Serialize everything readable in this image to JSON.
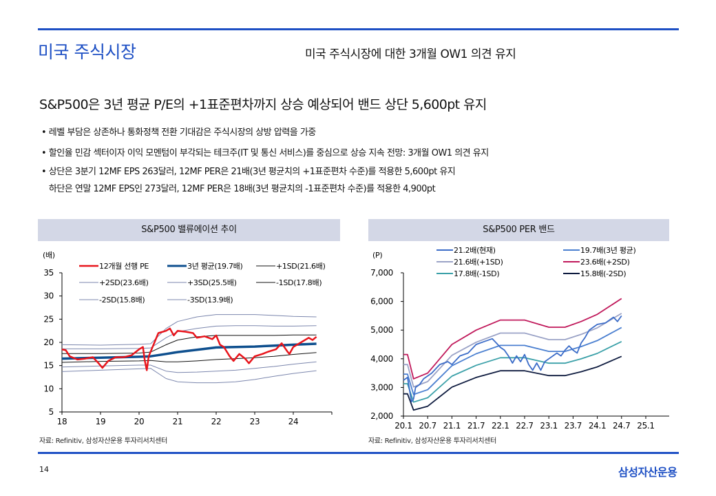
{
  "header": {
    "title": "미국 주식시장",
    "subtitle": "미국 주식시장에 대한 3개월 OW1 의견 유지"
  },
  "headline": "S&P500은 3년 평균 P/E의 +1표준편차까지 상승 예상되어 밴드 상단 5,600pt 유지",
  "bullets": [
    "• 레벨 부담은 상존하나 통화정책 전환 기대감은 주식시장의 상방 압력을 가중",
    "• 할인율 민감 섹터이자 이익 모멘텀이 부각되는 테크주(IT 및 통신 서비스)를 중심으로 상승 지속 전망: 3개월 OW1 의견 유지",
    "• 상단은 3분기 12MF EPS 263달러, 12MF PER은 21배(3년 평균치의 +1표준편차 수준)를 적용한 5,600pt 유지",
    "   하단은 연말 12MF EPS인 273달러, 12MF PER은 18배(3년 평균치의 -1표준편차 수준)를 적용한 4,900pt"
  ],
  "footer": {
    "page": "14",
    "logo": "삼성자산운용"
  },
  "colors": {
    "accent": "#1d4fc4",
    "pe": "#e8141b",
    "avg": "#0e4f8e"
  },
  "chart_data": [
    {
      "type": "line",
      "title": "S&P500 밸류에이션 추이",
      "unit": "(배)",
      "source": "자료: Refinitiv, 삼성자산운용 투자리서치센터",
      "ylim": [
        5,
        35
      ],
      "yticks": [
        "5",
        "10",
        "15",
        "20",
        "25",
        "30",
        "35"
      ],
      "xlim": [
        2018,
        2025
      ],
      "xticks": [
        {
          "v": 2018,
          "label": "18"
        },
        {
          "v": 2019,
          "label": "19"
        },
        {
          "v": 2020,
          "label": "20"
        },
        {
          "v": 2021,
          "label": "21"
        },
        {
          "v": 2022,
          "label": "22"
        },
        {
          "v": 2023,
          "label": "23"
        },
        {
          "v": 2024,
          "label": "24"
        }
      ],
      "band_x": [
        2018,
        2019,
        2020,
        2020.3,
        2020.7,
        2021,
        2021.5,
        2022,
        2022.5,
        2023,
        2023.5,
        2024,
        2024.6
      ],
      "series": [
        {
          "name": "12개월 선행 PE",
          "color": "#e8141b",
          "width": 2.5,
          "x": [
            2018,
            2018.1,
            2018.2,
            2018.4,
            2018.6,
            2018.8,
            2018.95,
            2019.05,
            2019.2,
            2019.4,
            2019.6,
            2019.8,
            2020,
            2020.1,
            2020.15,
            2020.2,
            2020.25,
            2020.4,
            2020.5,
            2020.7,
            2020.8,
            2020.9,
            2021,
            2021.2,
            2021.4,
            2021.5,
            2021.7,
            2021.9,
            2022,
            2022.1,
            2022.2,
            2022.35,
            2022.45,
            2022.6,
            2022.75,
            2022.85,
            2023,
            2023.2,
            2023.35,
            2023.55,
            2023.7,
            2023.85,
            2023.9,
            2024,
            2024.2,
            2024.4,
            2024.5,
            2024.6
          ],
          "y": [
            18.5,
            18.3,
            17,
            16.3,
            16.5,
            16.8,
            15.5,
            14.5,
            16,
            16.8,
            16.8,
            17.2,
            18.5,
            19,
            16,
            14,
            17,
            20,
            22,
            22.5,
            23,
            21.5,
            22.5,
            22.3,
            22,
            21,
            21.3,
            20.7,
            21.5,
            19.5,
            19,
            17,
            16,
            17.5,
            16.5,
            15.5,
            17,
            17.5,
            18,
            18.5,
            19.8,
            18,
            17.5,
            19,
            20,
            21,
            20.5,
            21.2
          ]
        },
        {
          "name": "3년 평균(19.7배)",
          "color": "#0e4f8e",
          "width": 3.5,
          "y": [
            16.5,
            16.7,
            16.9,
            17,
            17.5,
            17.9,
            18.4,
            18.9,
            19,
            19.1,
            19.3,
            19.5,
            19.7
          ]
        },
        {
          "name": "+1SD(21.6배)",
          "color": "#111111",
          "width": 1,
          "y": [
            17.6,
            17.6,
            17.7,
            17.9,
            19.5,
            20.5,
            21.2,
            21.5,
            21.5,
            21.5,
            21.5,
            21.6,
            21.6
          ]
        },
        {
          "name": "+2SD(23.6배)",
          "color": "#7b86ad",
          "width": 1,
          "y": [
            18.6,
            18.6,
            18.7,
            18.8,
            21,
            22.3,
            23,
            23.5,
            23.6,
            23.6,
            23.5,
            23.5,
            23.6
          ]
        },
        {
          "name": "+3SD(25.5배)",
          "color": "#7b86ad",
          "width": 1,
          "y": [
            19.5,
            19.4,
            19.6,
            19.7,
            23,
            24.5,
            25.5,
            26,
            26,
            26,
            25.8,
            25.6,
            25.5
          ]
        },
        {
          "name": "-1SD(17.8배)",
          "color": "#111111",
          "width": 1,
          "y": [
            15.7,
            15.9,
            16,
            16.1,
            15.8,
            15.8,
            16,
            16.3,
            16.5,
            16.7,
            17,
            17.4,
            17.8
          ]
        },
        {
          "name": "-2SD(15.8배)",
          "color": "#7b86ad",
          "width": 1,
          "y": [
            14.7,
            14.9,
            15.1,
            15.1,
            13.8,
            13.5,
            13.6,
            13.8,
            14,
            14.4,
            14.8,
            15.3,
            15.8
          ]
        },
        {
          "name": "-3SD(13.9배)",
          "color": "#7b86ad",
          "width": 1,
          "y": [
            13.7,
            14,
            14.3,
            14.4,
            12.2,
            11.5,
            11.3,
            11.3,
            11.5,
            12,
            12.7,
            13.3,
            13.9
          ]
        }
      ]
    },
    {
      "type": "line",
      "title": "S&P500 PER 밴드",
      "unit": "(P)",
      "source": "자료: Refinitiv, 삼성자산운용 투자리서치센터",
      "ylim": [
        2000,
        7000
      ],
      "yticks": [
        "2,000",
        "3,000",
        "4,000",
        "5,000",
        "6,000",
        "7,000"
      ],
      "x_unit": "months since 2020.1",
      "xlim": [
        0,
        60
      ],
      "xticks": [
        {
          "v": 0,
          "label": "20.1"
        },
        {
          "v": 6,
          "label": "20.7"
        },
        {
          "v": 12,
          "label": "21.1"
        },
        {
          "v": 18,
          "label": "21.7"
        },
        {
          "v": 24,
          "label": "22.1"
        },
        {
          "v": 30,
          "label": "22.7"
        },
        {
          "v": 36,
          "label": "23.1"
        },
        {
          "v": 42,
          "label": "23.7"
        },
        {
          "v": 48,
          "label": "24.1"
        },
        {
          "v": 54,
          "label": "24.7"
        },
        {
          "v": 60,
          "label": "25.1"
        }
      ],
      "eps_x": [
        0,
        1,
        2.5,
        6,
        12,
        18,
        24,
        30,
        36,
        40,
        44,
        48,
        54
      ],
      "eps_12mf": [
        175.8,
        175.8,
        139.8,
        148.3,
        190.7,
        211.9,
        226.7,
        226.7,
        216.1,
        216.1,
        224.6,
        235.2,
        258.5
      ],
      "bands": [
        {
          "name": "19.7배(3년 평균)",
          "multiple": 19.7,
          "color": "#4a7fd0"
        },
        {
          "name": "21.6배(+1SD)",
          "multiple": 21.6,
          "color": "#9aa2c6"
        },
        {
          "name": "23.6배(+2SD)",
          "multiple": 23.6,
          "color": "#c0185a"
        },
        {
          "name": "17.8배(-1SD)",
          "multiple": 17.8,
          "color": "#3aa0a8"
        },
        {
          "name": "15.8배(-2SD)",
          "multiple": 15.8,
          "color": "#0d1a3e"
        }
      ],
      "current": {
        "name": "21.2배(현재)",
        "color": "#3b6cc8",
        "x": [
          0,
          1,
          2,
          2.5,
          3,
          4,
          5,
          6,
          7,
          9,
          11,
          12,
          14,
          16,
          18,
          20,
          22,
          23,
          24,
          25,
          26,
          27,
          28,
          29,
          30,
          31,
          32,
          33,
          34,
          35,
          36,
          37,
          38,
          39,
          40,
          41,
          42,
          43,
          44,
          45,
          46,
          47,
          48,
          50,
          52,
          53,
          54
        ],
        "y": [
          3250,
          3350,
          2500,
          2600,
          3000,
          3100,
          3300,
          3400,
          3500,
          3800,
          3900,
          3800,
          4100,
          4200,
          4500,
          4600,
          4700,
          4550,
          4400,
          4300,
          4100,
          3850,
          4100,
          3900,
          4150,
          3800,
          3600,
          3850,
          3600,
          3900,
          4000,
          4100,
          4200,
          4100,
          4300,
          4450,
          4300,
          4200,
          4550,
          4750,
          5000,
          5100,
          5200,
          5250,
          5450,
          5300,
          5500
        ]
      },
      "legend_order": [
        "21.2배(현재)",
        "19.7배(3년 평균)",
        "21.6배(+1SD)",
        "23.6배(+2SD)",
        "17.8배(-1SD)",
        "15.8배(-2SD)"
      ]
    }
  ]
}
